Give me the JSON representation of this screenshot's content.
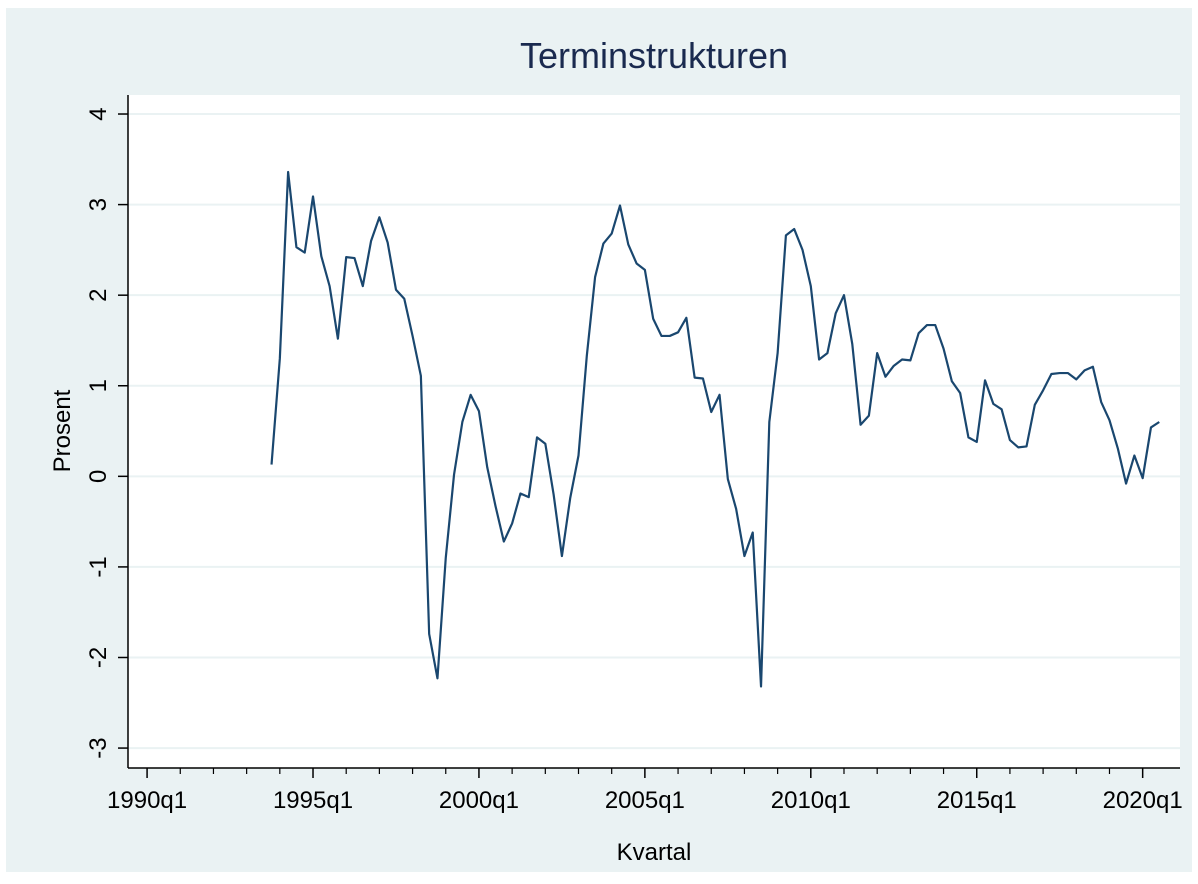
{
  "chart_data": {
    "type": "line",
    "title": "Terminstrukturen",
    "xlabel": "Kvartal",
    "ylabel": "Prosent",
    "x": [
      135,
      136,
      137,
      138,
      139,
      140,
      141,
      142,
      143,
      144,
      145,
      146,
      147,
      148,
      149,
      150,
      151,
      152,
      153,
      154,
      155,
      156,
      157,
      158,
      159,
      160,
      161,
      162,
      163,
      164,
      165,
      166,
      167,
      168,
      169,
      170,
      171,
      172,
      173,
      174,
      175,
      176,
      177,
      178,
      179,
      180,
      181,
      182,
      183,
      184,
      185,
      186,
      187,
      188,
      189,
      190,
      191,
      192,
      193,
      194,
      195,
      196,
      197,
      198,
      199,
      200,
      201,
      202,
      203,
      204,
      205,
      206,
      207,
      208,
      209,
      210,
      211,
      212,
      213,
      214,
      215,
      216,
      217,
      218,
      219,
      220,
      221,
      222,
      223,
      224,
      225,
      226,
      227,
      228,
      229,
      230,
      231,
      232,
      233,
      234,
      235,
      236,
      237,
      238,
      239,
      240,
      241,
      242
    ],
    "series": [
      {
        "name": "Terminstrukturen",
        "color": "#1a476f",
        "values": [
          0.13,
          1.3,
          3.36,
          2.53,
          2.47,
          3.09,
          2.43,
          2.1,
          1.52,
          2.42,
          2.41,
          2.1,
          2.6,
          2.86,
          2.58,
          2.06,
          1.96,
          1.55,
          1.11,
          -1.74,
          -2.23,
          -0.9,
          0.02,
          0.6,
          0.9,
          0.72,
          0.1,
          -0.33,
          -0.72,
          -0.52,
          -0.19,
          -0.23,
          0.43,
          0.36,
          -0.2,
          -0.88,
          -0.24,
          0.23,
          1.33,
          2.2,
          2.57,
          2.68,
          2.99,
          2.56,
          2.35,
          2.28,
          1.74,
          1.55,
          1.55,
          1.59,
          1.75,
          1.09,
          1.08,
          0.71,
          0.9,
          -0.03,
          -0.36,
          -0.88,
          -0.62,
          -2.32,
          0.6,
          1.36,
          2.66,
          2.73,
          2.5,
          2.1,
          1.29,
          1.36,
          1.8,
          2.0,
          1.46,
          0.57,
          0.67,
          1.36,
          1.1,
          1.22,
          1.29,
          1.28,
          1.58,
          1.67,
          1.67,
          1.41,
          1.05,
          0.92,
          0.43,
          0.38,
          1.06,
          0.8,
          0.74,
          0.4,
          0.32,
          0.33,
          0.79,
          0.95,
          1.13,
          1.14,
          1.14,
          1.07,
          1.17,
          1.21,
          0.82,
          0.62,
          0.31,
          -0.08,
          0.23,
          -0.02,
          0.54,
          0.6
        ]
      }
    ],
    "xlim": [
      117.7,
      244.5
    ],
    "xticks": [
      {
        "value": 120,
        "label": "1990q1"
      },
      {
        "value": 140,
        "label": "1995q1"
      },
      {
        "value": 160,
        "label": "2000q1"
      },
      {
        "value": 180,
        "label": "2005q1"
      },
      {
        "value": 200,
        "label": "2010q1"
      },
      {
        "value": 220,
        "label": "2015q1"
      },
      {
        "value": 240,
        "label": "2020q1"
      }
    ],
    "xminorticks": [
      124,
      128,
      132,
      136,
      144,
      148,
      152,
      156,
      164,
      168,
      172,
      176,
      184,
      188,
      192,
      196,
      204,
      208,
      212,
      216,
      224,
      228,
      232,
      236
    ],
    "ylim": [
      -3.22,
      4.21
    ],
    "yticks": [
      -3,
      -2,
      -1,
      0,
      1,
      2,
      3,
      4
    ],
    "grid": true
  }
}
